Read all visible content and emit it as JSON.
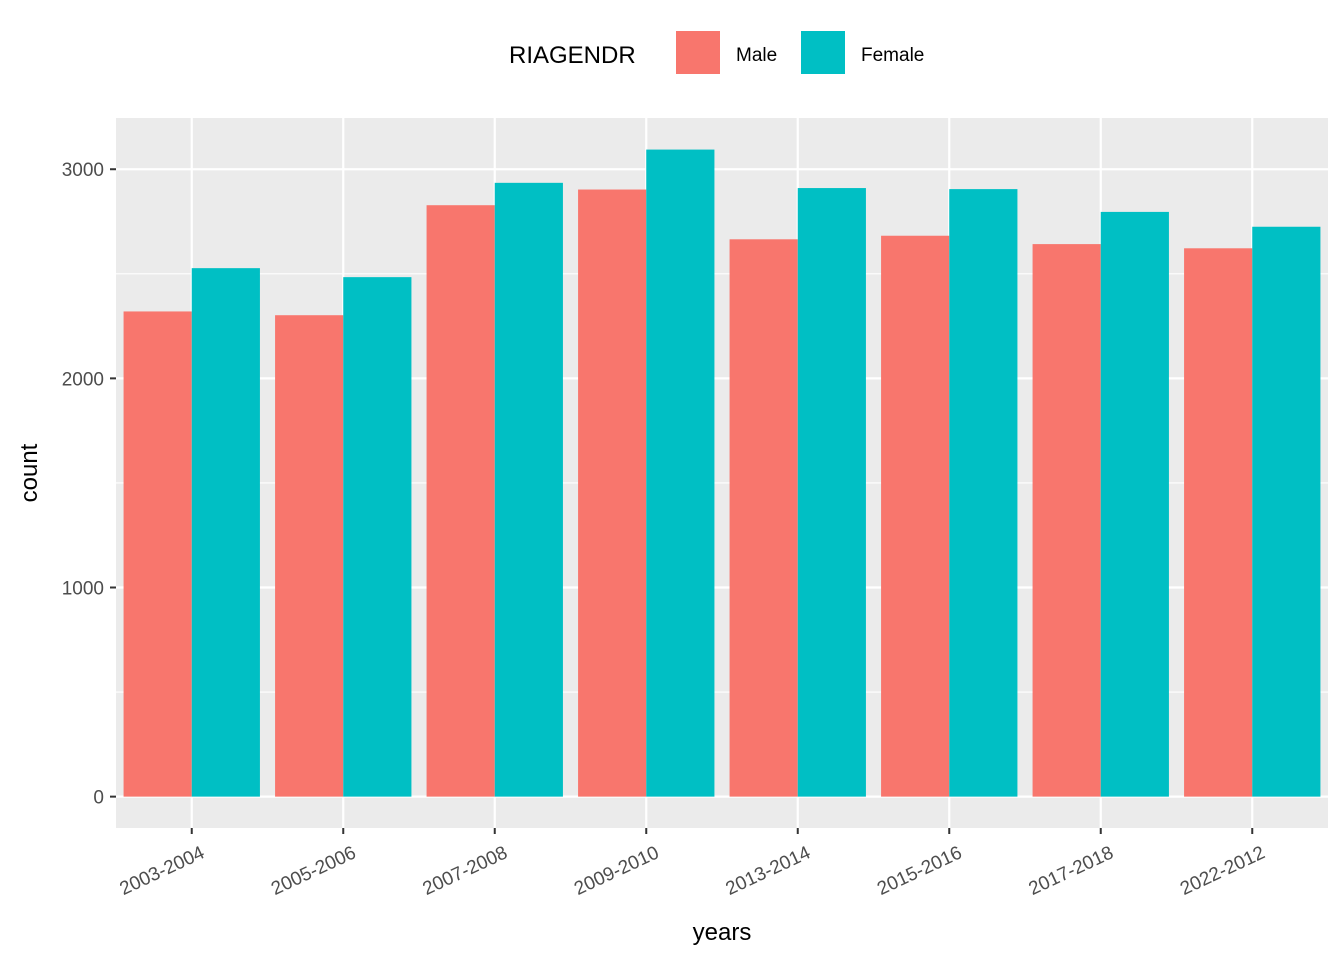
{
  "legend": {
    "title": "RIAGENDR"
  },
  "chart_data": {
    "type": "bar",
    "title": "",
    "xlabel": "years",
    "ylabel": "count",
    "categories": [
      "2003-2004",
      "2005-2006",
      "2007-2008",
      "2009-2010",
      "2013-2014",
      "2015-2016",
      "2017-2018",
      "2022-2012"
    ],
    "series": [
      {
        "name": "Male",
        "color": "#F8766D",
        "values": [
          2320,
          2302,
          2828,
          2903,
          2665,
          2682,
          2642,
          2622
        ]
      },
      {
        "name": "Female",
        "color": "#00BFC4",
        "values": [
          2527,
          2484,
          2935,
          3094,
          2910,
          2905,
          2796,
          2725
        ]
      }
    ],
    "ylim": [
      -150,
      3245
    ],
    "yticks": [
      0,
      1000,
      2000,
      3000
    ],
    "grid": true,
    "legend_position": "top",
    "panel_background": "#EBEBEB",
    "grid_color": "#FFFFFF"
  }
}
